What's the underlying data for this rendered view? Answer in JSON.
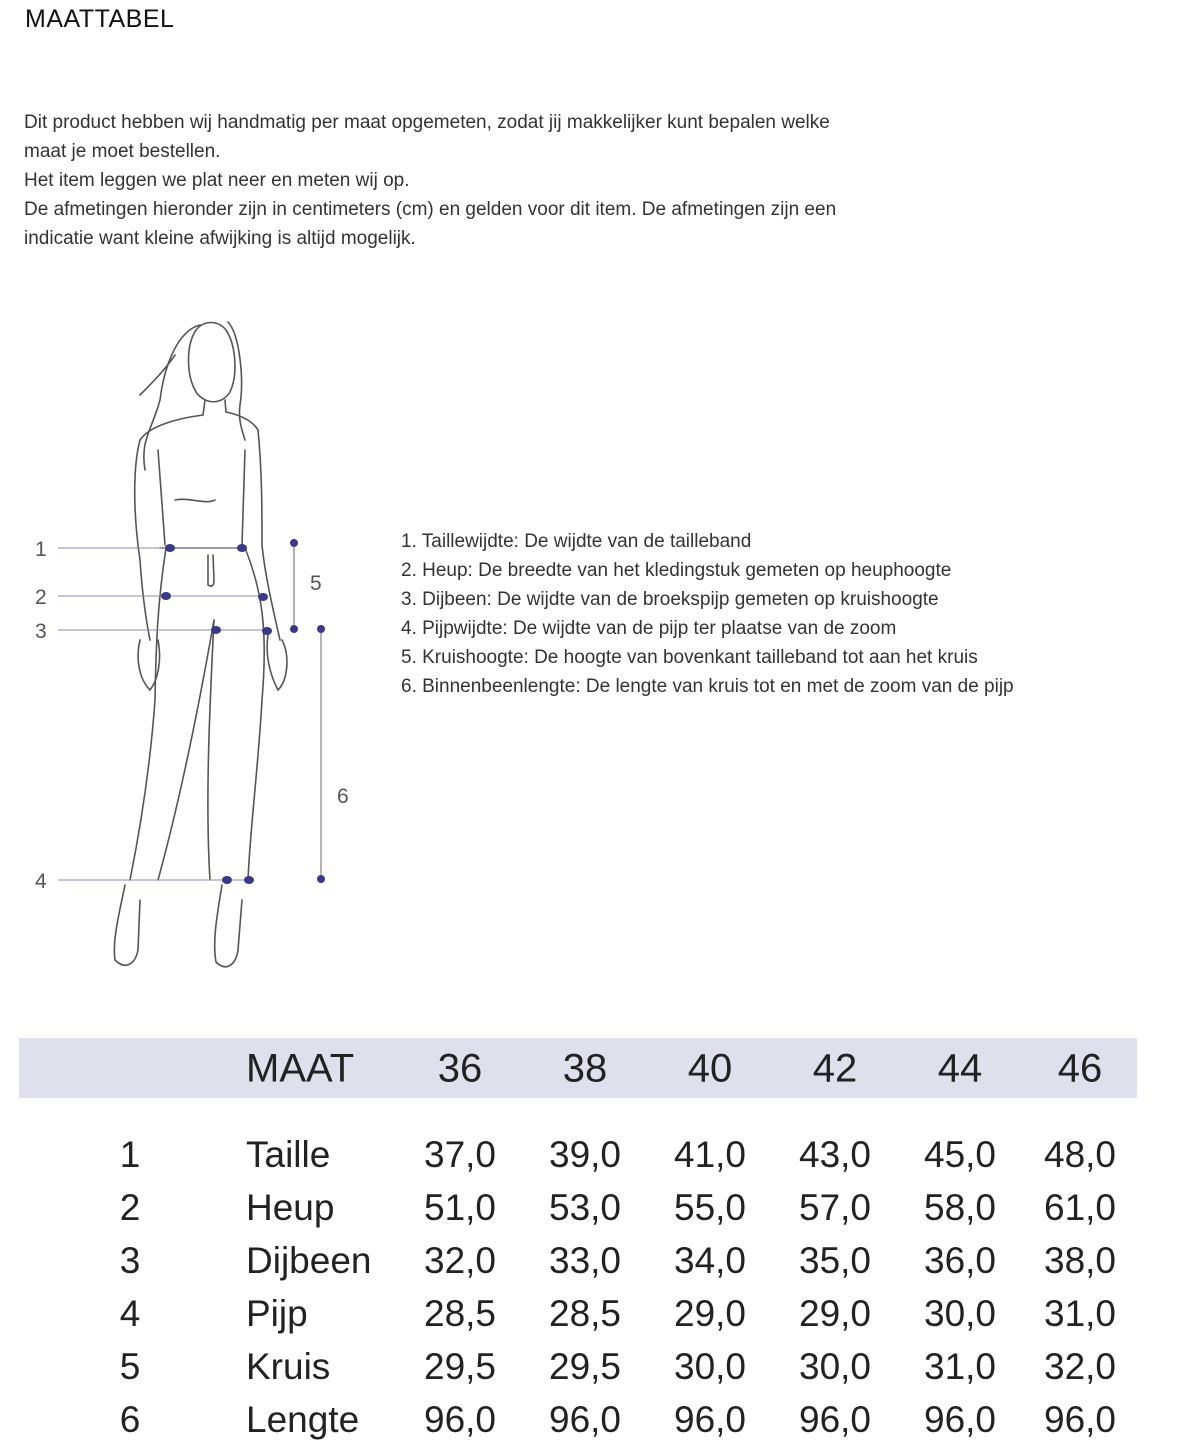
{
  "title": "MAATTABEL",
  "intro_lines": [
    "Dit product hebben wij handmatig per maat opgemeten, zodat jij makkelijker kunt bepalen welke",
    "maat je moet bestellen.",
    "Het item leggen we plat neer en meten wij op.",
    "De afmetingen hieronder zijn in centimeters (cm) en gelden voor dit item. De afmetingen zijn een",
    "indicatie want kleine afwijking is altijd mogelijk."
  ],
  "figure": {
    "labels": [
      "1",
      "2",
      "3",
      "4",
      "5",
      "6"
    ],
    "marker_color": "#3a3987"
  },
  "legend": [
    "1. Taillewijdte: De wijdte van de tailleband",
    "2. Heup: De breedte van het kledingstuk gemeten op heuphoogte",
    "3. Dijbeen: De wijdte van de broekspijp gemeten op kruishoogte",
    "4. Pijpwijdte: De wijdte van de pijp ter plaatse van de zoom",
    "5. Kruishoogte: De hoogte van bovenkant tailleband tot aan het kruis",
    "6. Binnenbeenlengte: De lengte van kruis tot en met de zoom van de pijp"
  ],
  "table": {
    "header_color": "#e0dfec",
    "header_label": "MAAT",
    "sizes": [
      "36",
      "38",
      "40",
      "42",
      "44",
      "46"
    ],
    "rows": [
      {
        "num": "1",
        "label": "Taille",
        "values": [
          "37,0",
          "39,0",
          "41,0",
          "43,0",
          "45,0",
          "48,0"
        ]
      },
      {
        "num": "2",
        "label": "Heup",
        "values": [
          "51,0",
          "53,0",
          "55,0",
          "57,0",
          "58,0",
          "61,0"
        ]
      },
      {
        "num": "3",
        "label": "Dijbeen",
        "values": [
          "32,0",
          "33,0",
          "34,0",
          "35,0",
          "36,0",
          "38,0"
        ]
      },
      {
        "num": "4",
        "label": "Pijp",
        "values": [
          "28,5",
          "28,5",
          "29,0",
          "29,0",
          "30,0",
          "31,0"
        ]
      },
      {
        "num": "5",
        "label": "Kruis",
        "values": [
          "29,5",
          "29,5",
          "30,0",
          "30,0",
          "31,0",
          "32,0"
        ]
      },
      {
        "num": "6",
        "label": "Lengte",
        "values": [
          "96,0",
          "96,0",
          "96,0",
          "96,0",
          "96,0",
          "96,0"
        ]
      }
    ]
  }
}
